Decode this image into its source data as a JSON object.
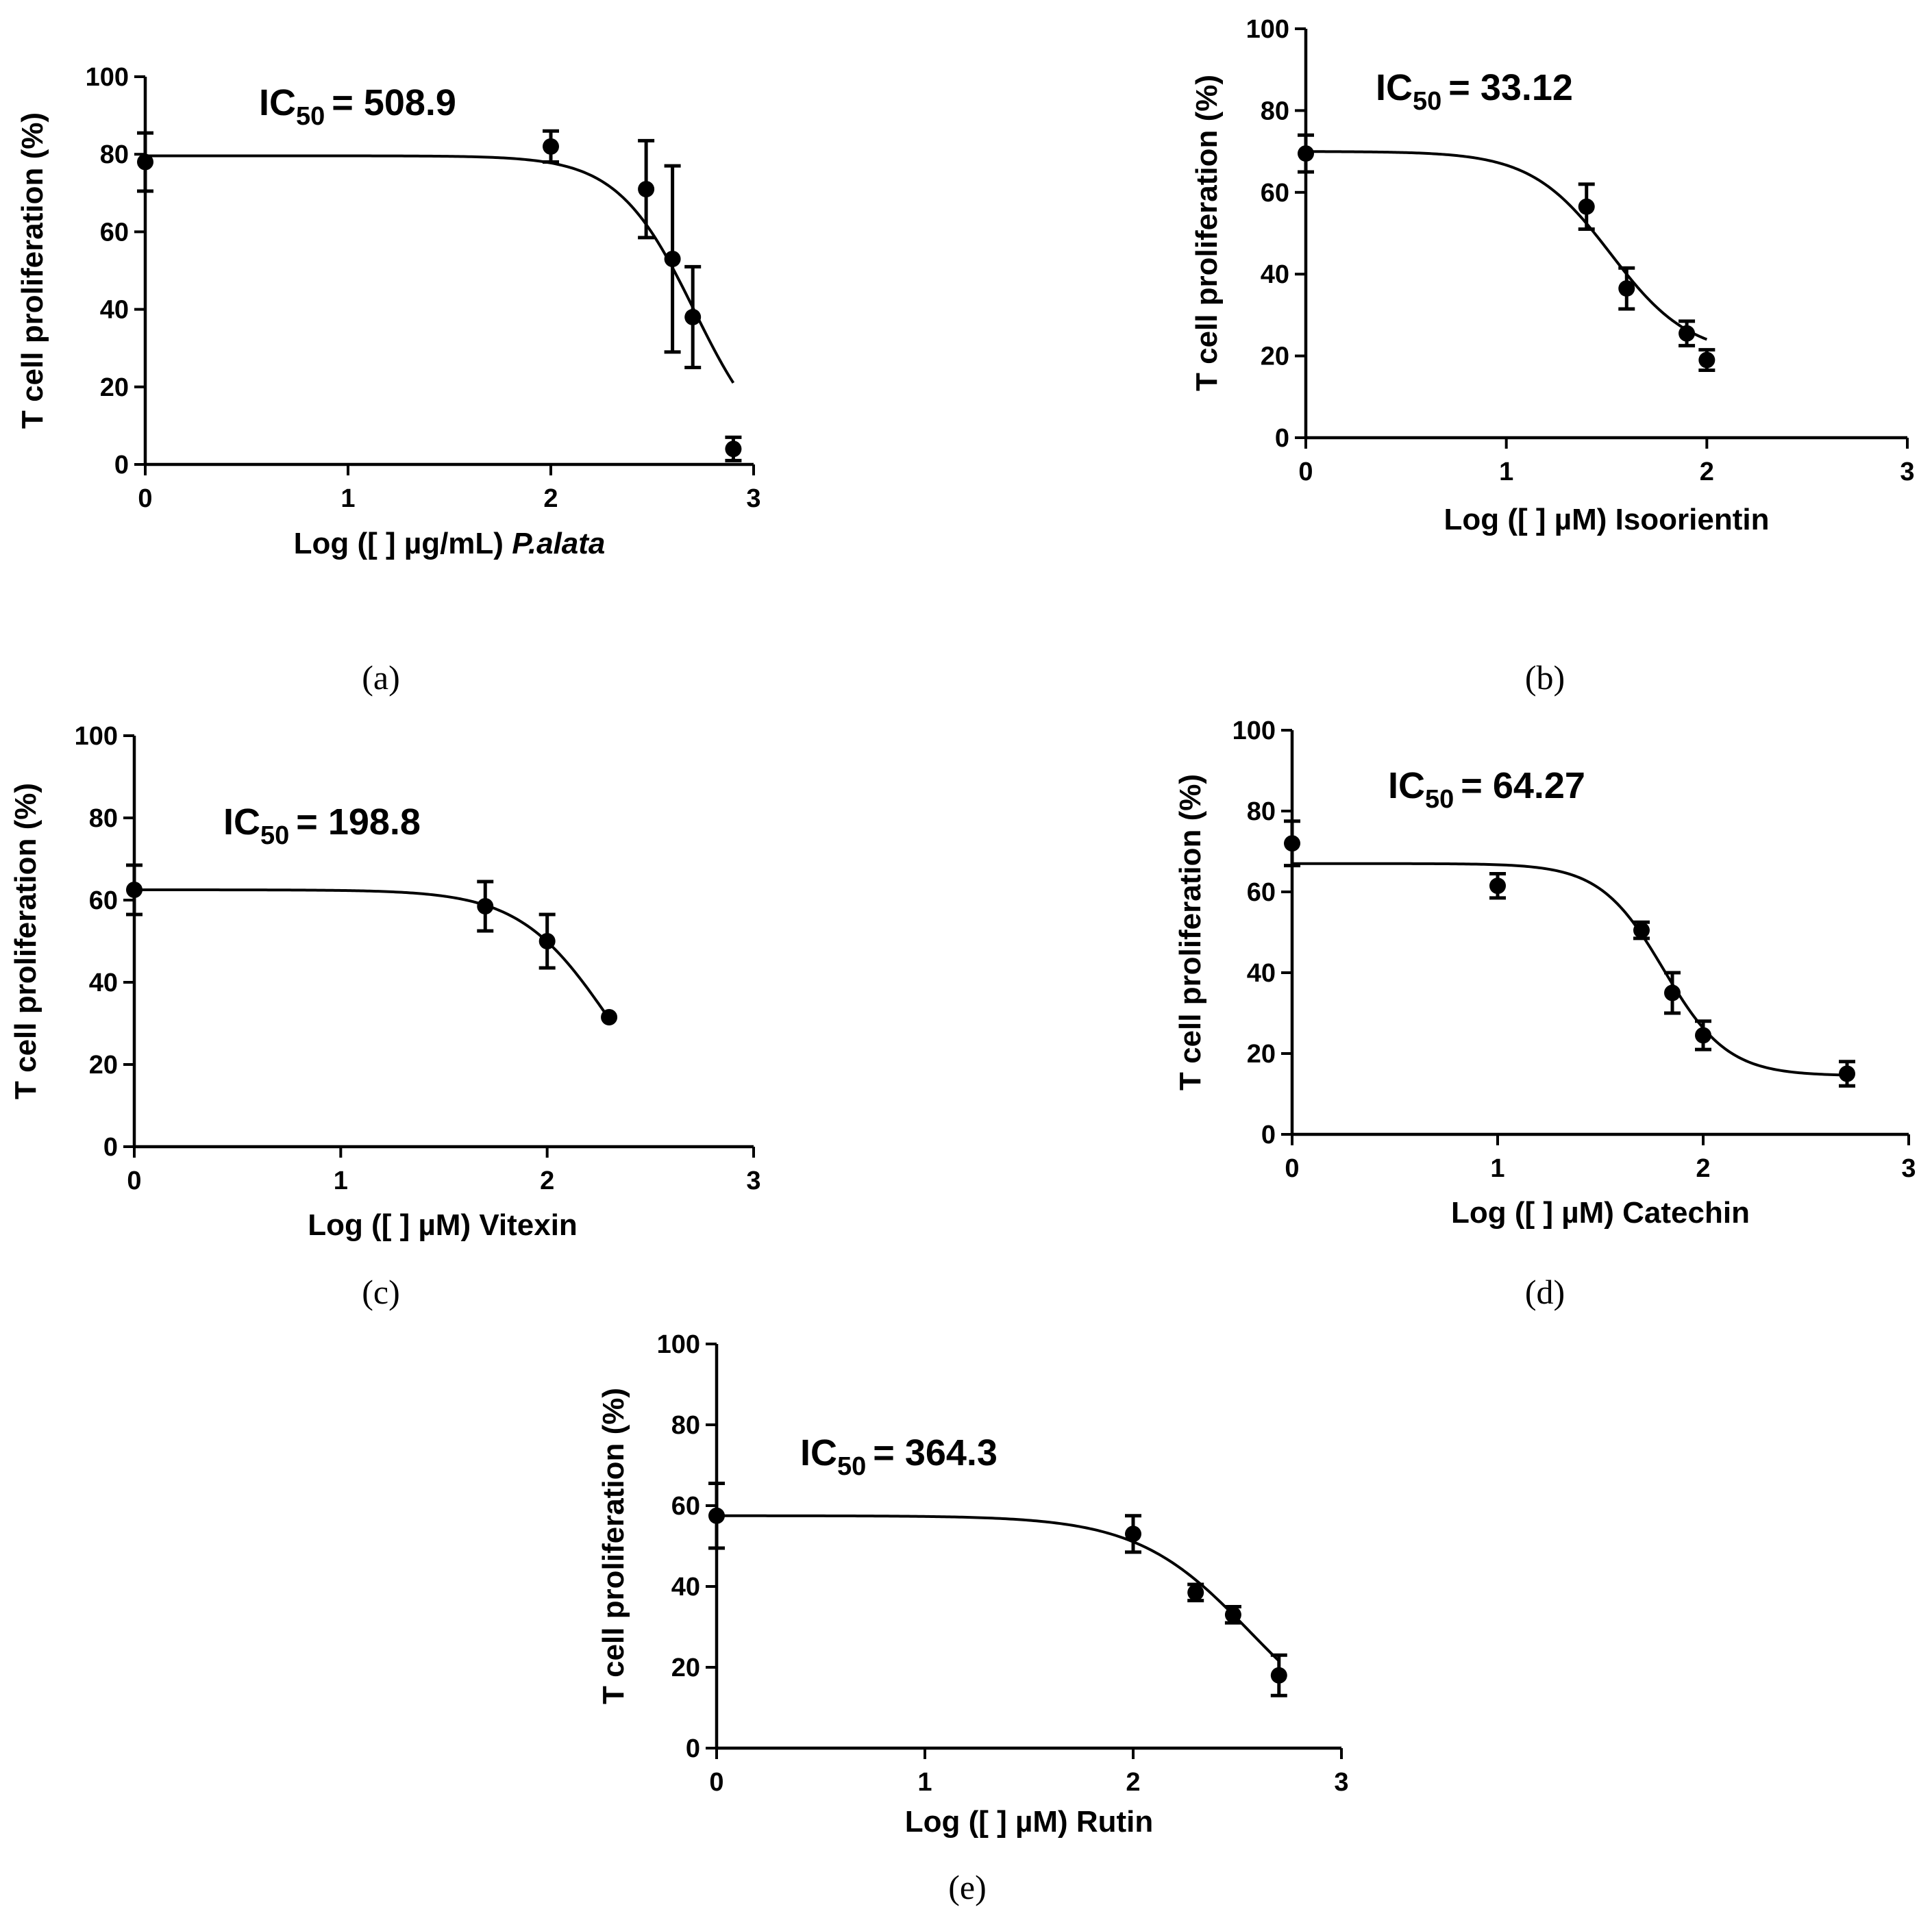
{
  "chart_data": [
    {
      "type": "line",
      "panel": "(a)",
      "annotation": {
        "prefix": "IC",
        "subscript": "50",
        "value": "= 508.9"
      },
      "ylabel": "T cell proliferation (%)",
      "xlabel": {
        "text": "Log ([ ] µg/mL) ",
        "italic": "P.alata"
      },
      "xlim": [
        0,
        3
      ],
      "ylim": [
        0,
        100
      ],
      "xticks": [
        "0",
        "1",
        "2",
        "3"
      ],
      "yticks": [
        "0",
        "20",
        "40",
        "60",
        "80",
        "100"
      ],
      "points": [
        {
          "x": 0.0,
          "y": 78,
          "err": 7.5
        },
        {
          "x": 2.0,
          "y": 82,
          "err": 4
        },
        {
          "x": 2.47,
          "y": 71,
          "err": 12.5
        },
        {
          "x": 2.6,
          "y": 53,
          "err": 24
        },
        {
          "x": 2.7,
          "y": 38,
          "err": 13
        },
        {
          "x": 2.9,
          "y": 4,
          "err": 3
        }
      ],
      "curve": {
        "top": 79.6,
        "bottom": 0,
        "logIC50": 2.7066,
        "hill": 2.3,
        "x_start": 0.0,
        "x_end": 2.9
      }
    },
    {
      "type": "line",
      "panel": "(b)",
      "annotation": {
        "prefix": "IC",
        "subscript": "50",
        "value": "= 33.12"
      },
      "ylabel": "T cell proliferation (%)",
      "xlabel": {
        "text": "Log ([ ] µM) Isoorientin",
        "italic": ""
      },
      "xlim": [
        0,
        3
      ],
      "ylim": [
        0,
        100
      ],
      "xticks": [
        "0",
        "1",
        "2",
        "3"
      ],
      "yticks": [
        "0",
        "20",
        "40",
        "60",
        "80",
        "100"
      ],
      "points": [
        {
          "x": 0.0,
          "y": 69.5,
          "err": 4.5
        },
        {
          "x": 1.4,
          "y": 56.5,
          "err": 5.5
        },
        {
          "x": 1.6,
          "y": 36.5,
          "err": 5
        },
        {
          "x": 1.9,
          "y": 25.5,
          "err": 3
        },
        {
          "x": 2.0,
          "y": 19,
          "err": 2.5
        }
      ],
      "curve": {
        "top": 70,
        "bottom": 20,
        "logIC50": 1.5201,
        "hill": 2.2,
        "x_start": 0.0,
        "x_end": 2.0
      }
    },
    {
      "type": "line",
      "panel": "(c)",
      "annotation": {
        "prefix": "IC",
        "subscript": "50",
        "value": "= 198.8"
      },
      "ylabel": "T cell proliferation (%)",
      "xlabel": {
        "text": "Log ([ ] µM) Vitexin",
        "italic": ""
      },
      "xlim": [
        0,
        3
      ],
      "ylim": [
        0,
        100
      ],
      "xticks": [
        "0",
        "1",
        "2",
        "3"
      ],
      "yticks": [
        "0",
        "20",
        "40",
        "60",
        "80",
        "100"
      ],
      "points": [
        {
          "x": 0.0,
          "y": 62.5,
          "err": 6
        },
        {
          "x": 1.7,
          "y": 58.5,
          "err": 6
        },
        {
          "x": 2.0,
          "y": 50,
          "err": 6.5
        },
        {
          "x": 2.3,
          "y": 31.5,
          "err": 0
        }
      ],
      "curve": {
        "top": 62.5,
        "bottom": 0,
        "logIC50": 2.2984,
        "hill": 2.0,
        "x_start": 0.0,
        "x_end": 2.3
      }
    },
    {
      "type": "line",
      "panel": "(d)",
      "annotation": {
        "prefix": "IC",
        "subscript": "50",
        "value": "= 64.27"
      },
      "ylabel": "T cell proliferation (%)",
      "xlabel": {
        "text": "Log ([ ] µM) Catechin",
        "italic": ""
      },
      "xlim": [
        0,
        3
      ],
      "ylim": [
        0,
        100
      ],
      "xticks": [
        "0",
        "1",
        "2",
        "3"
      ],
      "yticks": [
        "0",
        "20",
        "40",
        "60",
        "80",
        "100"
      ],
      "points": [
        {
          "x": 0.0,
          "y": 72,
          "err": 5.5
        },
        {
          "x": 1.0,
          "y": 61.5,
          "err": 3
        },
        {
          "x": 1.7,
          "y": 50.5,
          "err": 2
        },
        {
          "x": 1.85,
          "y": 35,
          "err": 5
        },
        {
          "x": 2.0,
          "y": 24.5,
          "err": 3.5
        },
        {
          "x": 2.7,
          "y": 15,
          "err": 3
        }
      ],
      "curve": {
        "top": 67,
        "bottom": 14.5,
        "logIC50": 1.808,
        "hill": 2.8,
        "x_start": 0.0,
        "x_end": 2.7
      }
    },
    {
      "type": "line",
      "panel": "(e)",
      "annotation": {
        "prefix": "IC",
        "subscript": "50",
        "value": "= 364.3"
      },
      "ylabel": "T cell proliferation (%)",
      "xlabel": {
        "text": "Log ([ ] µM) Rutin",
        "italic": ""
      },
      "xlim": [
        0,
        3
      ],
      "ylim": [
        0,
        100
      ],
      "xticks": [
        "0",
        "1",
        "2",
        "3"
      ],
      "yticks": [
        "0",
        "20",
        "40",
        "60",
        "80",
        "100"
      ],
      "points": [
        {
          "x": 0.0,
          "y": 57.5,
          "err": 8
        },
        {
          "x": 2.0,
          "y": 53,
          "err": 4.5
        },
        {
          "x": 2.3,
          "y": 38.5,
          "err": 2
        },
        {
          "x": 2.48,
          "y": 33,
          "err": 2
        },
        {
          "x": 2.7,
          "y": 18,
          "err": 5
        }
      ],
      "curve": {
        "top": 57.5,
        "bottom": 0,
        "logIC50": 2.5615,
        "hill": 1.6,
        "x_start": 0.0,
        "x_end": 2.7
      }
    }
  ]
}
